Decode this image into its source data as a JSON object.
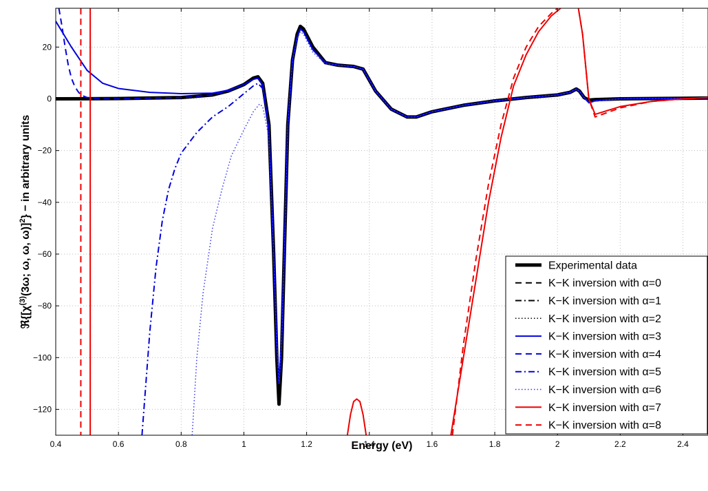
{
  "chart_data": {
    "type": "line",
    "title": "",
    "xlabel": "Energy (eV)",
    "ylabel": "ℜ{[χ(3)(3ω; ω, ω, ω)]2} − in arbitrary units",
    "ylabel_parts": {
      "pre": "ℜ{[χ",
      "sup1": "(3)",
      "mid": "(3ω; ω, ω, ω)]",
      "sup2": "2",
      "post": "} − in arbitrary units"
    },
    "xlim": [
      0.4,
      2.48
    ],
    "ylim": [
      -130,
      35
    ],
    "xticks": [
      0.4,
      0.6,
      0.8,
      1,
      1.2,
      1.4,
      1.6,
      1.8,
      2,
      2.2,
      2.4
    ],
    "xtick_labels": [
      "0.4",
      "0.6",
      "0.8",
      "1",
      "1.2",
      "1.4",
      "1.6",
      "1.8",
      "2",
      "2.2",
      "2.4"
    ],
    "yticks": [
      -120,
      -100,
      -80,
      -60,
      -40,
      -20,
      0,
      20
    ],
    "ytick_labels": [
      "−120",
      "−100",
      "−80",
      "−60",
      "−40",
      "−20",
      "0",
      "20"
    ],
    "grid": true,
    "legend_position": "bottom-right",
    "series": [
      {
        "name": "Experimental data",
        "color": "#000000",
        "style": "solid",
        "width": 5,
        "x": [
          0.4,
          0.6,
          0.8,
          0.9,
          0.95,
          1,
          1.03,
          1.045,
          1.06,
          1.08,
          1.095,
          1.105,
          1.112,
          1.12,
          1.13,
          1.14,
          1.155,
          1.17,
          1.18,
          1.19,
          1.22,
          1.26,
          1.3,
          1.35,
          1.38,
          1.42,
          1.47,
          1.52,
          1.55,
          1.6,
          1.7,
          1.8,
          1.9,
          2,
          2.04,
          2.06,
          2.07,
          2.085,
          2.1,
          2.12,
          2.2,
          2.3,
          2.4,
          2.48
        ],
        "y": [
          0,
          0.1,
          0.5,
          1.5,
          3,
          5.5,
          8,
          8.5,
          6,
          -10,
          -60,
          -100,
          -118,
          -100,
          -55,
          -10,
          15,
          25,
          28,
          27,
          20,
          14,
          13,
          12.5,
          11.5,
          3,
          -4,
          -7,
          -7,
          -5,
          -2.5,
          -0.8,
          0.5,
          1.5,
          2.5,
          3.8,
          3,
          0.5,
          -0.5,
          -0.3,
          0,
          0.1,
          0.2,
          0.3
        ]
      },
      {
        "name": "K−K inversion with α=0",
        "color": "#000000",
        "style": "dashed",
        "width": 2,
        "x": [
          0.4,
          0.6,
          0.8,
          0.9,
          0.95,
          1,
          1.03,
          1.045,
          1.06,
          1.08,
          1.095,
          1.105,
          1.112,
          1.12,
          1.13,
          1.14,
          1.155,
          1.17,
          1.18,
          1.19,
          1.22,
          1.26,
          1.3,
          1.35,
          1.38,
          1.42,
          1.47,
          1.52,
          1.55,
          1.6,
          1.7,
          1.8,
          1.9,
          2,
          2.04,
          2.06,
          2.07,
          2.085,
          2.1,
          2.12,
          2.2,
          2.3,
          2.4,
          2.48
        ],
        "y": [
          0,
          0.1,
          0.5,
          1.5,
          3,
          5.5,
          8,
          8.5,
          6,
          -10,
          -60,
          -100,
          -117,
          -100,
          -55,
          -10,
          15,
          25,
          28,
          27,
          20,
          14,
          13,
          12.5,
          11.5,
          3,
          -4,
          -7,
          -7,
          -5,
          -2.5,
          -0.8,
          0.5,
          1.5,
          2.5,
          3.8,
          3,
          0.5,
          -0.5,
          -0.3,
          0,
          0.1,
          0.2,
          0.3
        ]
      },
      {
        "name": "K−K inversion with α=1",
        "color": "#000000",
        "style": "dashdot",
        "width": 2,
        "x": [
          0.4,
          0.6,
          0.8,
          0.9,
          0.95,
          1,
          1.03,
          1.045,
          1.06,
          1.08,
          1.095,
          1.105,
          1.112,
          1.12,
          1.13,
          1.14,
          1.155,
          1.17,
          1.18,
          1.19,
          1.22,
          1.26,
          1.3,
          1.35,
          1.38,
          1.42,
          1.47,
          1.52,
          1.55,
          1.6,
          1.7,
          1.8,
          1.9,
          2,
          2.04,
          2.06,
          2.07,
          2.085,
          2.1,
          2.12,
          2.2,
          2.3,
          2.4,
          2.48
        ],
        "y": [
          0,
          0.1,
          0.5,
          1.5,
          3,
          5.5,
          8,
          8.5,
          6,
          -10,
          -60,
          -100,
          -117,
          -100,
          -55,
          -10,
          15,
          25,
          28,
          27,
          20,
          14,
          13,
          12.5,
          11.5,
          3,
          -4,
          -7,
          -7,
          -5,
          -2.5,
          -0.8,
          0.5,
          1.5,
          2.5,
          3.8,
          3,
          0.5,
          -0.5,
          -0.3,
          0,
          0.1,
          0.2,
          0.3
        ]
      },
      {
        "name": "K−K inversion with α=2",
        "color": "#000000",
        "style": "dotted",
        "width": 1.5,
        "x": [
          0.4,
          0.6,
          0.8,
          0.9,
          0.95,
          1,
          1.03,
          1.045,
          1.06,
          1.08,
          1.095,
          1.105,
          1.112,
          1.12,
          1.13,
          1.14,
          1.155,
          1.17,
          1.18,
          1.19,
          1.22,
          1.26,
          1.3,
          1.35,
          1.38,
          1.42,
          1.47,
          1.52,
          1.55,
          1.6,
          1.7,
          1.8,
          1.9,
          2,
          2.04,
          2.06,
          2.07,
          2.085,
          2.1,
          2.12,
          2.2,
          2.3,
          2.4,
          2.48
        ],
        "y": [
          0,
          0.1,
          0.5,
          1.5,
          3,
          5.5,
          8,
          8.5,
          6,
          -10,
          -60,
          -100,
          -116,
          -100,
          -55,
          -10,
          15,
          25,
          28,
          27,
          20,
          14,
          13,
          12.5,
          11.5,
          3,
          -4,
          -7,
          -7,
          -5,
          -2.5,
          -0.8,
          0.5,
          1.5,
          2.5,
          3.8,
          3,
          0.5,
          -0.5,
          -0.3,
          0,
          0.1,
          0.2,
          0.3
        ]
      },
      {
        "name": "K−K inversion with α=3",
        "color": "#0000dd",
        "style": "solid",
        "width": 2,
        "x": [
          0.4,
          0.45,
          0.5,
          0.55,
          0.6,
          0.7,
          0.8,
          0.9,
          0.95,
          1,
          1.03,
          1.045,
          1.06,
          1.08,
          1.095,
          1.105,
          1.112,
          1.12,
          1.13,
          1.14,
          1.155,
          1.17,
          1.18,
          1.19,
          1.22,
          1.26,
          1.3,
          1.35,
          1.38,
          1.42,
          1.47,
          1.52,
          1.55,
          1.6,
          1.7,
          1.8,
          1.9,
          2,
          2.04,
          2.06,
          2.07,
          2.085,
          2.1,
          2.12,
          2.2,
          2.3,
          2.4,
          2.48
        ],
        "y": [
          30,
          20,
          11,
          6,
          4,
          2.5,
          2,
          2.2,
          3.3,
          5.5,
          7.5,
          8,
          5.5,
          -12,
          -60,
          -95,
          -110,
          -95,
          -55,
          -10,
          15,
          24,
          27,
          26,
          19,
          14,
          13,
          12.5,
          11.5,
          3,
          -4,
          -7,
          -7,
          -5,
          -2.5,
          -0.8,
          0.5,
          1.5,
          2.5,
          3.8,
          3,
          0.5,
          -1.5,
          -0.8,
          0,
          0.1,
          0.2,
          0.3
        ]
      },
      {
        "name": "K−K inversion with α=4",
        "color": "#0000dd",
        "style": "dashed",
        "width": 2,
        "x": [
          0.41,
          0.42,
          0.43,
          0.44,
          0.45,
          0.46,
          0.47,
          0.48,
          0.5,
          0.55,
          0.6,
          0.8,
          0.9,
          0.95,
          1,
          1.03,
          1.045,
          1.06,
          1.08,
          1.095,
          1.105,
          1.112,
          1.12,
          1.13,
          1.14,
          1.155,
          1.17,
          1.18,
          1.19,
          1.22,
          1.26,
          1.3,
          1.35,
          1.38,
          1.42,
          1.47,
          1.52,
          1.55,
          1.6,
          1.7,
          1.8,
          1.9,
          2,
          2.04,
          2.06,
          2.07,
          2.085,
          2.1,
          2.12,
          2.2,
          2.3,
          2.4,
          2.48
        ],
        "y": [
          35,
          28,
          20,
          13,
          8,
          5,
          3,
          1.5,
          0.5,
          0,
          0,
          0.5,
          1.5,
          3,
          5.5,
          7.5,
          8,
          5.5,
          -12,
          -60,
          -95,
          -110,
          -95,
          -55,
          -10,
          15,
          24,
          27,
          26,
          19,
          14,
          13,
          12.5,
          11.5,
          3,
          -4,
          -7,
          -7,
          -5,
          -2.5,
          -0.8,
          0.5,
          1.5,
          2.5,
          3.8,
          3,
          0.5,
          -1.5,
          -0.8,
          0,
          0.1,
          0.2,
          0.3
        ]
      },
      {
        "name": "K−K inversion with α=5",
        "color": "#0000dd",
        "style": "dashdot",
        "width": 2,
        "x": [
          0.675,
          0.7,
          0.72,
          0.74,
          0.76,
          0.78,
          0.8,
          0.85,
          0.9,
          0.95,
          1,
          1.03,
          1.045,
          1.06,
          1.08,
          1.095,
          1.105,
          1.112,
          1.12,
          1.13,
          1.14,
          1.155,
          1.17,
          1.18,
          1.19,
          1.22,
          1.26,
          1.3,
          1.35,
          1.38,
          1.42,
          1.47,
          1.52,
          1.55,
          1.6,
          1.7,
          1.8,
          1.9,
          2,
          2.04,
          2.06,
          2.07,
          2.085,
          2.1,
          2.12,
          2.2,
          2.3,
          2.4,
          2.48
        ],
        "y": [
          -130,
          -90,
          -65,
          -47,
          -35,
          -27,
          -21,
          -13,
          -7,
          -3,
          2,
          5,
          6,
          4,
          -12,
          -60,
          -95,
          -110,
          -95,
          -55,
          -10,
          15,
          24,
          27,
          26,
          19,
          14,
          13,
          12.5,
          11.5,
          3,
          -4,
          -7,
          -7,
          -5,
          -2.5,
          -0.8,
          0.5,
          1.5,
          2.5,
          3.8,
          3,
          0.5,
          -1.5,
          -0.8,
          0,
          0.1,
          0.2,
          0.3
        ]
      },
      {
        "name": "K−K inversion with α=6",
        "color": "#3333ff",
        "style": "dotted",
        "width": 1.5,
        "x": [
          0.835,
          0.85,
          0.87,
          0.9,
          0.93,
          0.96,
          1,
          1.03,
          1.05,
          1.06,
          1.08,
          1.095,
          1.105,
          1.112,
          1.12,
          1.13,
          1.14,
          1.155,
          1.17,
          1.18,
          1.19,
          1.22,
          1.26,
          1.3,
          1.35,
          1.38,
          1.42,
          1.47,
          1.52,
          1.55,
          1.6,
          1.7,
          1.8,
          1.9,
          2,
          2.04,
          2.06,
          2.07,
          2.085,
          2.1,
          2.12,
          2.2,
          2.3,
          2.4,
          2.48
        ],
        "y": [
          -130,
          -100,
          -75,
          -50,
          -35,
          -22,
          -12,
          -5,
          -2,
          -3,
          -15,
          -60,
          -95,
          -110,
          -95,
          -55,
          -10,
          15,
          23,
          26,
          25,
          18,
          13.5,
          13,
          12.5,
          11.5,
          3,
          -4,
          -7,
          -7,
          -5,
          -2.5,
          -0.8,
          0.5,
          1.5,
          2.5,
          3.8,
          3,
          0.5,
          -1.5,
          -0.8,
          0,
          0.1,
          0.2,
          0.3
        ]
      },
      {
        "name": "K−K inversion with α=7",
        "color": "#ee0000",
        "style": "solid",
        "width": 2,
        "vlines": [
          0.51
        ],
        "segments": [
          {
            "x": [
              1.33,
              1.34,
              1.35,
              1.36,
              1.37,
              1.38,
              1.39
            ],
            "y": [
              -130,
              -122,
              -117,
              -116,
              -117,
              -122,
              -130
            ]
          },
          {
            "x": [
              1.66,
              1.7,
              1.74,
              1.78,
              1.82,
              1.86,
              1.9,
              1.94,
              1.98,
              2.01,
              2.03,
              2.06,
              2.08,
              2.1,
              2.12,
              2.2,
              2.3,
              2.4,
              2.48
            ],
            "y": [
              -130,
              -100,
              -70,
              -40,
              -15,
              5,
              17,
              26,
              32,
              35,
              38,
              40,
              25,
              0,
              -6,
              -3,
              -1,
              0,
              0.5
            ]
          }
        ]
      },
      {
        "name": "K−K inversion with α=8",
        "color": "#ee0000",
        "style": "dashed",
        "width": 2,
        "vlines": [
          0.48
        ],
        "segments": [
          {
            "x": [
              1.665,
              1.7,
              1.74,
              1.78,
              1.82,
              1.86,
              1.9,
              1.94,
              1.98,
              2.0,
              2.03,
              2.06,
              2.08,
              2.1,
              2.12,
              2.2,
              2.3,
              2.4,
              2.48
            ],
            "y": [
              -130,
              -95,
              -62,
              -33,
              -10,
              8,
              20,
              28,
              33,
              35,
              38,
              40,
              25,
              0,
              -7,
              -3.5,
              -1,
              0,
              0.5
            ]
          }
        ]
      }
    ]
  }
}
